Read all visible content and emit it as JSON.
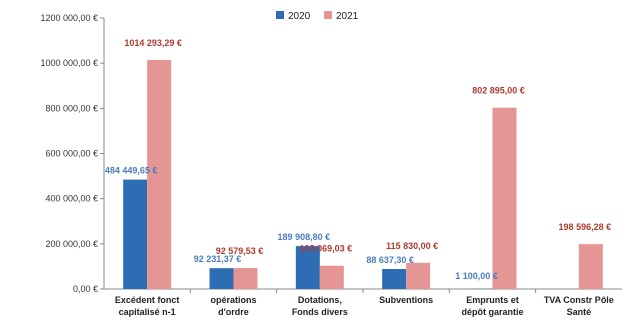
{
  "chart_data": {
    "type": "bar",
    "categories": [
      [
        "Excédent fonct",
        "capitalisé n-1"
      ],
      [
        "opérations",
        "d'ordre"
      ],
      [
        "Dotations,",
        "Fonds divers"
      ],
      [
        "Subventions"
      ],
      [
        "Emprunts et",
        "dépôt garantie"
      ],
      [
        "TVA Constr Pôle",
        "Santé"
      ]
    ],
    "series": [
      {
        "name": "2020",
        "color": "#2E6DB4",
        "label_color": "#4A7CC2",
        "values": [
          484449.65,
          92231.37,
          189908.8,
          88637.3,
          1100.0,
          0
        ],
        "labels": [
          "484 449,65 €",
          "92 231,37 €",
          "189 908,80 €",
          "88 637,30 €",
          "1 100,00 €",
          ""
        ]
      },
      {
        "name": "2021",
        "color": "#E59594",
        "label_color": "#B03A2E",
        "values": [
          1014293.29,
          92579.53,
          103069.03,
          115830.0,
          802895.0,
          198596.28
        ],
        "labels": [
          "1014 293,29 €",
          "92 579,53 €",
          "103 069,03 €",
          "115 830,00 €",
          "802 895,00 €",
          "198 596,28 €"
        ]
      }
    ],
    "yticks": [
      "0,00 €",
      "200 000,00 €",
      "400 000,00 €",
      "600 000,00 €",
      "800 000,00 €",
      "1000 000,00 €",
      "1200 000,00 €"
    ],
    "ylim": [
      0,
      1200000
    ],
    "grid": false,
    "legend": "top-center"
  }
}
